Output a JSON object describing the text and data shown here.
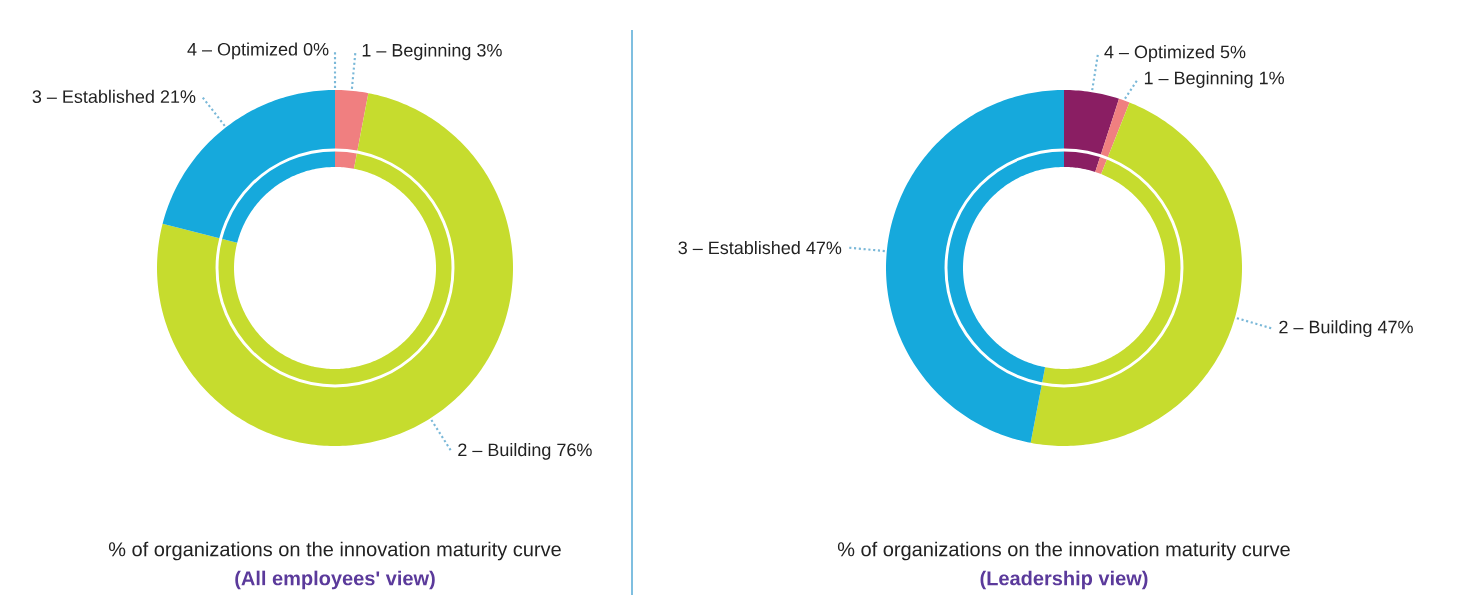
{
  "chart_data": [
    {
      "type": "donut",
      "title": "% of organizations on the innovation maturity curve",
      "subtitle": "(All employees' view)",
      "categories": [
        "4 – Optimized",
        "1 – Beginning",
        "2 – Building",
        "3 – Established"
      ],
      "values": [
        0,
        3,
        76,
        21
      ],
      "colors": [
        "#8a1e63",
        "#f07f80",
        "#c6dc2e",
        "#16a9dc"
      ],
      "value_labels": [
        "0%",
        "3%",
        "76%",
        "21%"
      ]
    },
    {
      "type": "donut",
      "title": "% of organizations on the innovation maturity curve",
      "subtitle": "(Leadership view)",
      "categories": [
        "4 – Optimized",
        "1 – Beginning",
        "2 – Building",
        "3 – Established"
      ],
      "values": [
        5,
        1,
        47,
        47
      ],
      "colors": [
        "#8a1e63",
        "#f07f80",
        "#c6dc2e",
        "#16a9dc"
      ],
      "value_labels": [
        "5%",
        "1%",
        "47%",
        "47%"
      ]
    }
  ]
}
